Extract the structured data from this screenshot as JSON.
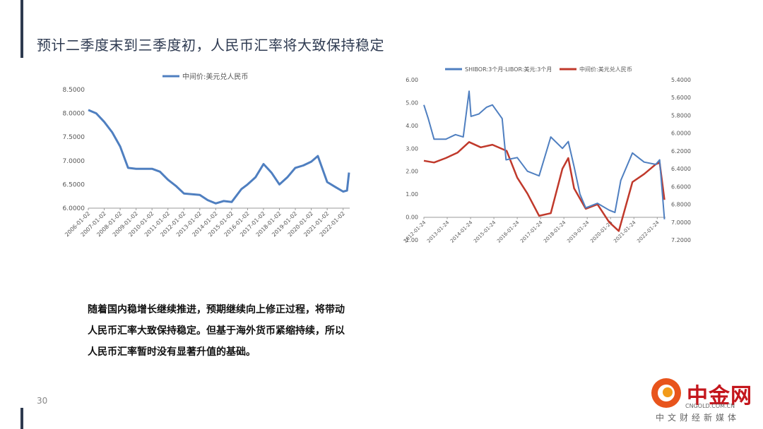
{
  "slide": {
    "title": "预计二季度末到三季度初，人民币汇率将大致保持稳定",
    "page_number": "30",
    "body_lines": [
      "随着国内稳增长继续推进，预期继续向上修正过程，将带动",
      "人民币汇率大致保持稳定。但基于海外货币紧缩持续，所以",
      "人民币汇率暂时没有显著升值的基础。"
    ]
  },
  "logo": {
    "brand": "中金网",
    "url": "CNGOLD.COM.CN",
    "tagline": "中文财经新媒体"
  },
  "colors": {
    "blue": "#4f7fc0",
    "red": "#c0392b",
    "title": "#2f3b52"
  },
  "chart_data": [
    {
      "type": "line",
      "title": "",
      "legend_position": "top-center",
      "series": [
        {
          "name": "中间价:美元兑人民币",
          "x": [
            "2006-01-02",
            "2006-07-01",
            "2007-01-02",
            "2007-07-01",
            "2008-01-02",
            "2008-07-01",
            "2009-01-02",
            "2010-01-02",
            "2010-07-01",
            "2011-01-02",
            "2011-07-01",
            "2012-01-02",
            "2013-01-02",
            "2013-07-01",
            "2014-01-02",
            "2014-07-01",
            "2015-01-02",
            "2015-08-12",
            "2016-01-02",
            "2016-07-01",
            "2017-01-02",
            "2017-07-01",
            "2018-01-02",
            "2018-07-01",
            "2019-01-02",
            "2019-07-01",
            "2020-01-02",
            "2020-06-01",
            "2021-01-02",
            "2021-07-01",
            "2022-01-02",
            "2022-04-01",
            "2022-05-15"
          ],
          "values": [
            8.07,
            8.0,
            7.82,
            7.6,
            7.3,
            6.85,
            6.83,
            6.83,
            6.77,
            6.6,
            6.47,
            6.31,
            6.28,
            6.17,
            6.1,
            6.15,
            6.13,
            6.4,
            6.5,
            6.65,
            6.93,
            6.75,
            6.5,
            6.65,
            6.85,
            6.9,
            6.98,
            7.1,
            6.55,
            6.45,
            6.35,
            6.37,
            6.75
          ]
        }
      ],
      "x_tick_labels": [
        "2006-01-02",
        "2007-01-02",
        "2008-01-02",
        "2009-01-02",
        "2010-01-02",
        "2011-01-02",
        "2012-01-02",
        "2013-01-02",
        "2014-01-02",
        "2015-01-02",
        "2016-01-02",
        "2017-01-02",
        "2018-01-02",
        "2019-01-02",
        "2020-01-02",
        "2021-01-02",
        "2022-01-02"
      ],
      "y_tick_labels": [
        "8.5000",
        "8.0000",
        "7.5000",
        "7.0000",
        "6.5000",
        "6.0000"
      ],
      "ylim": [
        6.0,
        8.5
      ],
      "grid": false
    },
    {
      "type": "line",
      "title": "",
      "legend_position": "top-center",
      "series": [
        {
          "name": "SHIBOR:3个月-LIBOR:美元:3个月",
          "axis": "left",
          "x": [
            "2012-01-24",
            "2012-04-01",
            "2012-07-01",
            "2013-01-01",
            "2013-06-01",
            "2013-10-01",
            "2014-01-01",
            "2014-02-01",
            "2014-06-01",
            "2014-10-01",
            "2015-01-01",
            "2015-06-01",
            "2015-08-01",
            "2016-01-24",
            "2016-07-01",
            "2017-01-01",
            "2017-07-01",
            "2018-01-01",
            "2018-04-01",
            "2018-07-01",
            "2018-10-01",
            "2019-01-01",
            "2019-07-01",
            "2020-01-01",
            "2020-04-01",
            "2020-07-01",
            "2021-01-01",
            "2021-04-01",
            "2021-07-01",
            "2022-01-01",
            "2022-03-01",
            "2022-05-15"
          ],
          "values": [
            4.9,
            4.3,
            3.4,
            3.4,
            3.6,
            3.5,
            5.5,
            4.4,
            4.5,
            4.8,
            4.9,
            4.3,
            2.5,
            2.6,
            2.0,
            1.8,
            3.5,
            3.0,
            3.3,
            2.2,
            1.0,
            0.4,
            0.6,
            0.3,
            0.2,
            1.6,
            2.8,
            2.6,
            2.4,
            2.3,
            2.5,
            -0.1
          ]
        },
        {
          "name": "中间价:美元兑人民币",
          "axis": "right",
          "x": [
            "2012-01-24",
            "2012-07-01",
            "2013-01-01",
            "2013-07-01",
            "2014-01-01",
            "2014-07-01",
            "2015-01-01",
            "2015-08-11",
            "2016-01-24",
            "2016-07-01",
            "2017-01-01",
            "2017-07-01",
            "2018-01-01",
            "2018-04-01",
            "2018-07-01",
            "2019-01-01",
            "2019-07-01",
            "2020-01-01",
            "2020-06-01",
            "2021-01-01",
            "2021-07-01",
            "2022-01-01",
            "2022-03-01",
            "2022-05-15"
          ],
          "values": [
            6.31,
            6.33,
            6.28,
            6.22,
            6.1,
            6.16,
            6.13,
            6.2,
            6.5,
            6.68,
            6.93,
            6.9,
            6.4,
            6.28,
            6.62,
            6.85,
            6.8,
            7.0,
            7.1,
            6.55,
            6.46,
            6.35,
            6.33,
            6.75
          ]
        }
      ],
      "x_tick_labels": [
        "2012-01-24",
        "2013-01-24",
        "2014-01-24",
        "2015-01-24",
        "2016-01-24",
        "2017-01-24",
        "2018-01-24",
        "2019-01-24",
        "2020-01-24",
        "2021-01-24",
        "2022-01-24"
      ],
      "y_left_tick_labels": [
        "6.00",
        "5.00",
        "4.00",
        "3.00",
        "2.00",
        "1.00",
        "0.00",
        "-1.00"
      ],
      "y_right_tick_labels": [
        "5.4000",
        "5.6000",
        "5.8000",
        "6.0000",
        "6.2000",
        "6.4000",
        "6.6000",
        "6.8000",
        "7.0000",
        "7.2000"
      ],
      "ylim_left": [
        -1.0,
        6.0
      ],
      "ylim_right": [
        7.2,
        5.4
      ],
      "right_axis_inverted": true,
      "grid": false
    }
  ]
}
